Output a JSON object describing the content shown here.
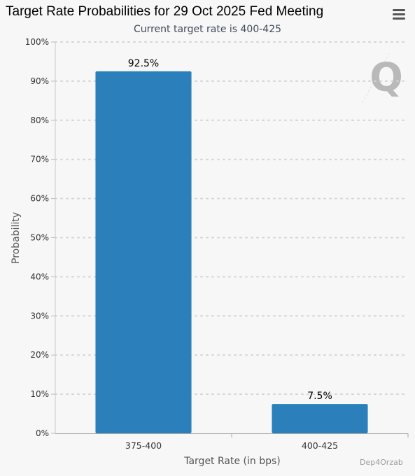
{
  "header": {
    "title": "Target Rate Probabilities for 29 Oct 2025 Fed Meeting",
    "subtitle": "Current target rate is 400-425"
  },
  "toolbar": {
    "menu_icon": "hamburger-menu-icon"
  },
  "logo": {
    "letter": "Q",
    "color": "#b9b9b9"
  },
  "watermark": {
    "text": "Dep4Orzab"
  },
  "colors": {
    "bar": "#2b7fba",
    "background": "#f7f7f7",
    "grid": "#d4d4d4"
  },
  "chart_data": {
    "type": "bar",
    "categories": [
      "375-400",
      "400-425"
    ],
    "values": [
      92.5,
      7.5
    ],
    "data_labels": [
      "92.5%",
      "7.5%"
    ],
    "title": "Target Rate Probabilities for 29 Oct 2025 Fed Meeting",
    "subtitle": "Current target rate is 400-425",
    "xlabel": "Target Rate (in bps)",
    "ylabel": "Probability",
    "ylim": [
      0,
      100
    ],
    "yticks": [
      0,
      10,
      20,
      30,
      40,
      50,
      60,
      70,
      80,
      90,
      100
    ],
    "ytick_labels": [
      "0%",
      "10%",
      "20%",
      "30%",
      "40%",
      "50%",
      "60%",
      "70%",
      "80%",
      "90%",
      "100%"
    ],
    "grid": true,
    "legend": "none"
  }
}
